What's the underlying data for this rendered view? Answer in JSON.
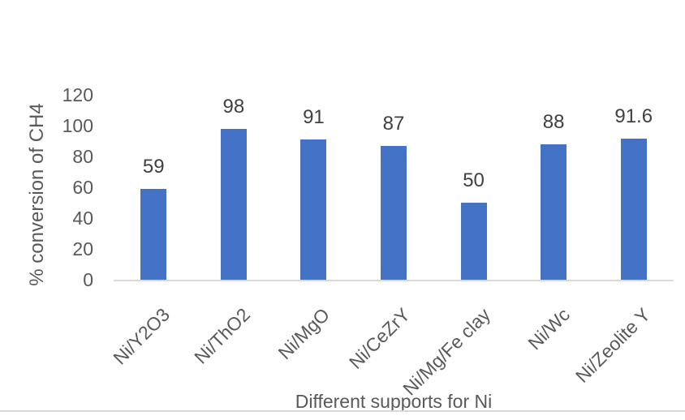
{
  "chart_data": {
    "type": "bar",
    "title": "",
    "categories": [
      "Ni/Y2O3",
      "Ni/ThO2",
      "Ni/MgO",
      "Ni/CeZrY",
      "Ni/Mg/Fe clay",
      "Ni/Wc",
      "Ni/Zeolite Y"
    ],
    "values": [
      59,
      98,
      91,
      87,
      50,
      88,
      91.6
    ],
    "value_labels": [
      "59",
      "98",
      "91",
      "87",
      "50",
      "88",
      "91.6"
    ],
    "xlabel": "Different supports for Ni",
    "ylabel": "% conversion of CH4",
    "ylim": [
      0,
      120
    ],
    "yticks": [
      0,
      20,
      40,
      60,
      80,
      100,
      120
    ],
    "grid": false,
    "legend": false,
    "colors": {
      "bar": "#4472C4",
      "axis_line": "#D9D9D9",
      "bottom_rule": "#D9D9D9",
      "tick_text": "#595959",
      "axis_title_text": "#595959",
      "data_label_text": "#404040",
      "background": "#FFFFFF"
    }
  }
}
